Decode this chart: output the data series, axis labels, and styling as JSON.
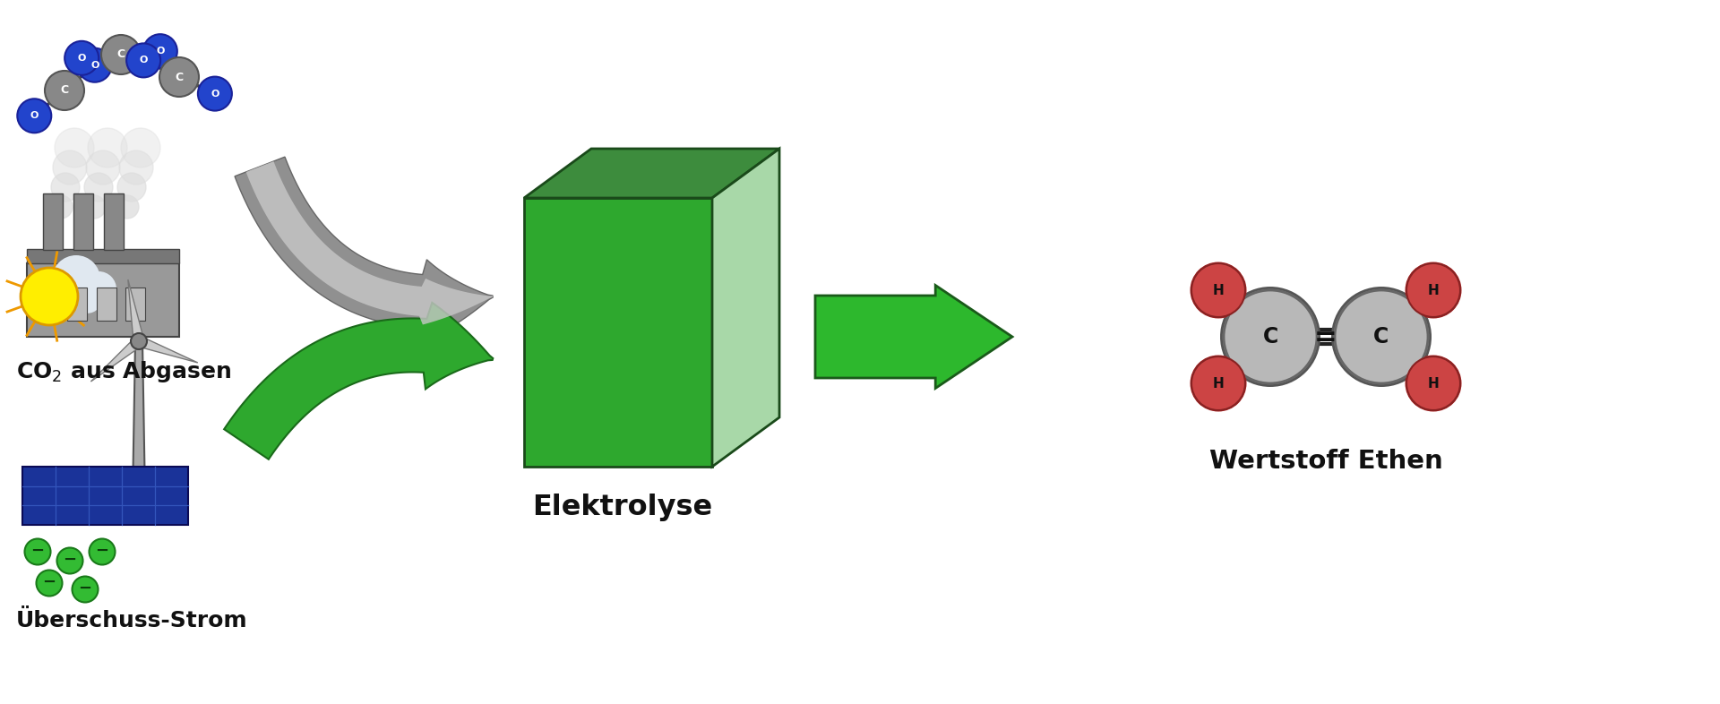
{
  "background_color": "#ffffff",
  "fig_width": 19.2,
  "fig_height": 7.86,
  "co2_label": "CO$_2$ aus Abgasen",
  "strom_label": "Überschuss-Strom",
  "elektrolyse_label": "Elektrolyse",
  "wertstoff_label": "Wertstoff Ethen",
  "green_dark": "#1a7a1a",
  "green_mid": "#2ea82e",
  "green_light": "#a8d8a8",
  "green_top": "#3d8c3d",
  "green_arrow": "#2db82d",
  "gray_arrow_light": "#c8c8c8",
  "gray_arrow_dark": "#909090",
  "atom_C_color": "#b8b8b8",
  "atom_H_color": "#cc4444",
  "bond_color": "#222222",
  "co2_C_color": "#888888",
  "co2_O_color": "#2244cc"
}
